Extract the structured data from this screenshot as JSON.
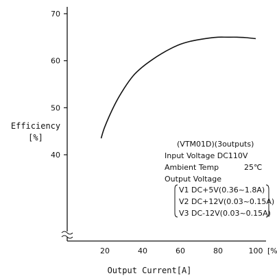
{
  "chart_data": {
    "type": "line",
    "xlabel": "Output Current[A]",
    "x_unit_suffix": "[%",
    "ylabel_line1": "Efficiency",
    "ylabel_line2": "[%]",
    "xlim": [
      0,
      100
    ],
    "ylim": [
      30,
      70
    ],
    "x_ticks": [
      20,
      40,
      60,
      80,
      100
    ],
    "y_ticks": [
      40,
      50,
      60,
      70
    ],
    "y_axis_break": true,
    "grid": false,
    "series": [
      {
        "x": [
          18,
          20,
          25,
          30,
          35,
          40,
          45,
          50,
          55,
          60,
          65,
          70,
          75,
          80,
          85,
          90,
          95,
          100
        ],
        "y": [
          43.5,
          46.0,
          50.5,
          54.0,
          56.8,
          58.7,
          60.2,
          61.5,
          62.6,
          63.5,
          64.1,
          64.5,
          64.8,
          65.0,
          65.0,
          65.0,
          64.9,
          64.7
        ]
      }
    ],
    "annotations": {
      "model": "(VTM01D)(3outputs)",
      "input_voltage": "Input Voltage DC110V",
      "ambient_temp_label": "Ambient Temp",
      "ambient_temp_value": "25℃",
      "output_voltage_label": "Output Voltage",
      "outputs": [
        "V1 DC+5V(0.36~1.8A)",
        "V2 DC+12V(0.03~0.15A)",
        "V3 DC-12V(0.03~0.15A)"
      ]
    }
  }
}
